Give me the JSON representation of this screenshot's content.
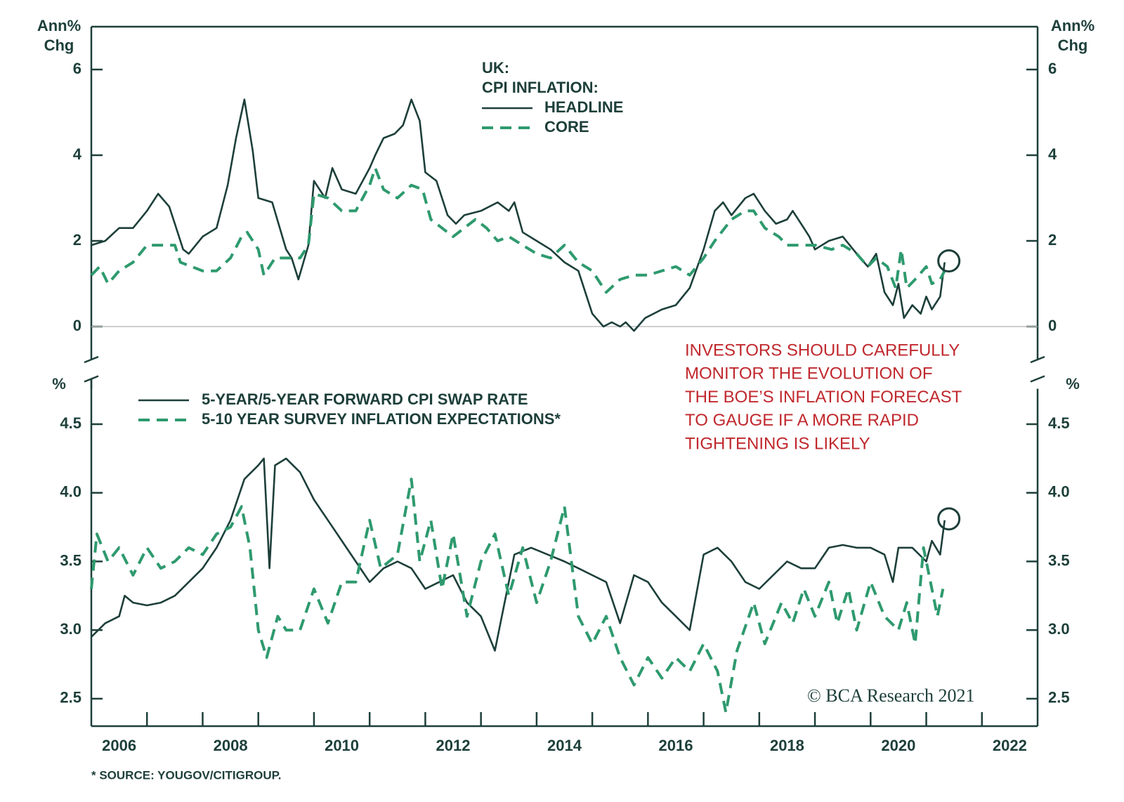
{
  "chart_data": [
    {
      "type": "line",
      "y_label": [
        "Ann%",
        "Chg"
      ],
      "y2_label": [
        "Ann%",
        "Chg"
      ],
      "legend_title": [
        "UK:",
        "CPI INFLATION:"
      ],
      "xlim": [
        2006,
        2023
      ],
      "ylim": [
        -1,
        7
      ],
      "yticks": [
        0,
        2,
        4,
        6
      ],
      "y2lim": [
        -1,
        7
      ],
      "y2ticks": [
        0,
        2,
        4,
        6
      ],
      "hlines": [
        0
      ],
      "series": [
        {
          "name": "HEADLINE",
          "color": "#1d3f3a",
          "style": "solid",
          "x": [
            2006.0,
            2006.25,
            2006.5,
            2006.75,
            2007.0,
            2007.2,
            2007.4,
            2007.5,
            2007.65,
            2007.75,
            2008.0,
            2008.25,
            2008.45,
            2008.6,
            2008.75,
            2008.9,
            2009.0,
            2009.25,
            2009.5,
            2009.6,
            2009.72,
            2009.9,
            2010.0,
            2010.2,
            2010.33,
            2010.5,
            2010.75,
            2011.0,
            2011.1,
            2011.25,
            2011.45,
            2011.6,
            2011.75,
            2011.9,
            2012.0,
            2012.2,
            2012.4,
            2012.55,
            2012.7,
            2013.0,
            2013.3,
            2013.5,
            2013.6,
            2013.75,
            2014.0,
            2014.25,
            2014.5,
            2014.75,
            2015.0,
            2015.2,
            2015.35,
            2015.5,
            2015.6,
            2015.75,
            2015.95,
            2016.25,
            2016.5,
            2016.75,
            2017.0,
            2017.2,
            2017.35,
            2017.5,
            2017.75,
            2017.9,
            2018.1,
            2018.3,
            2018.5,
            2018.6,
            2018.75,
            2018.9,
            2019.0,
            2019.25,
            2019.5,
            2019.75,
            2019.95,
            2020.1,
            2020.25,
            2020.4,
            2020.5,
            2020.6,
            2020.75,
            2020.9,
            2021.0,
            2021.1,
            2021.25,
            2021.33
          ],
          "values": [
            1.9,
            2.0,
            2.3,
            2.3,
            2.7,
            3.1,
            2.8,
            2.4,
            1.8,
            1.7,
            2.1,
            2.3,
            3.3,
            4.4,
            5.3,
            4.1,
            3.0,
            2.9,
            1.8,
            1.6,
            1.1,
            1.9,
            3.4,
            3.0,
            3.7,
            3.2,
            3.1,
            3.7,
            4.0,
            4.4,
            4.5,
            4.7,
            5.3,
            4.8,
            3.6,
            3.4,
            2.6,
            2.4,
            2.6,
            2.7,
            2.9,
            2.7,
            2.9,
            2.2,
            2.0,
            1.8,
            1.5,
            1.3,
            0.3,
            0.0,
            0.1,
            0.0,
            0.1,
            -0.1,
            0.2,
            0.4,
            0.5,
            0.9,
            1.8,
            2.7,
            2.9,
            2.6,
            3.0,
            3.1,
            2.7,
            2.4,
            2.5,
            2.7,
            2.4,
            2.1,
            1.8,
            2.0,
            2.1,
            1.7,
            1.4,
            1.7,
            0.8,
            0.5,
            1.0,
            0.2,
            0.5,
            0.3,
            0.7,
            0.4,
            0.7,
            1.5
          ]
        },
        {
          "name": "CORE",
          "color": "#2e9a6e",
          "style": "dashed",
          "x": [
            2006.0,
            2006.15,
            2006.3,
            2006.5,
            2006.75,
            2007.0,
            2007.3,
            2007.5,
            2007.6,
            2007.8,
            2008.0,
            2008.25,
            2008.5,
            2008.7,
            2008.8,
            2009.0,
            2009.1,
            2009.3,
            2009.5,
            2009.75,
            2009.9,
            2010.0,
            2010.25,
            2010.5,
            2010.75,
            2011.0,
            2011.1,
            2011.25,
            2011.5,
            2011.75,
            2011.95,
            2012.1,
            2012.3,
            2012.5,
            2012.7,
            2012.9,
            2013.1,
            2013.3,
            2013.5,
            2013.75,
            2014.0,
            2014.25,
            2014.5,
            2014.75,
            2015.0,
            2015.25,
            2015.5,
            2015.75,
            2016.0,
            2016.25,
            2016.5,
            2016.75,
            2017.0,
            2017.2,
            2017.5,
            2017.75,
            2017.9,
            2018.1,
            2018.35,
            2018.5,
            2018.75,
            2019.0,
            2019.3,
            2019.5,
            2019.75,
            2019.95,
            2020.1,
            2020.3,
            2020.45,
            2020.55,
            2020.65,
            2020.8,
            2021.0,
            2021.1,
            2021.25,
            2021.33
          ],
          "values": [
            1.2,
            1.4,
            1.0,
            1.3,
            1.5,
            1.9,
            1.9,
            1.9,
            1.5,
            1.4,
            1.3,
            1.3,
            1.6,
            2.1,
            2.2,
            1.8,
            1.2,
            1.6,
            1.6,
            1.6,
            1.9,
            3.1,
            3.0,
            2.7,
            2.7,
            3.3,
            3.7,
            3.2,
            3.0,
            3.3,
            3.2,
            2.5,
            2.3,
            2.1,
            2.3,
            2.5,
            2.3,
            2.0,
            2.1,
            1.9,
            1.7,
            1.6,
            1.9,
            1.5,
            1.3,
            0.8,
            1.1,
            1.2,
            1.2,
            1.3,
            1.4,
            1.2,
            1.6,
            2.0,
            2.5,
            2.7,
            2.7,
            2.3,
            2.1,
            1.9,
            1.9,
            1.9,
            1.8,
            1.9,
            1.7,
            1.4,
            1.6,
            1.4,
            0.9,
            1.8,
            0.9,
            1.1,
            1.4,
            1.0,
            1.1,
            1.3
          ]
        }
      ]
    },
    {
      "type": "line",
      "y_label": [
        "%"
      ],
      "y2_label": [
        "%"
      ],
      "xlim": [
        2006,
        2023
      ],
      "xticks": [
        2006,
        2008,
        2010,
        2012,
        2014,
        2016,
        2018,
        2020,
        2022
      ],
      "minor_xticks": [
        2007,
        2008,
        2009,
        2010,
        2011,
        2012,
        2013,
        2014,
        2015,
        2016,
        2017,
        2018,
        2019,
        2020,
        2021,
        2022
      ],
      "ylim": [
        2.3,
        4.83
      ],
      "yticks": [
        {
          "value": 2.5,
          "label": "2.5"
        },
        {
          "value": 3,
          "label": "3.0"
        },
        {
          "value": 3.5,
          "label": "3.5"
        },
        {
          "value": 4,
          "label": "4.0"
        },
        {
          "value": 4.5,
          "label": "4.5"
        }
      ],
      "y2lim": [
        2.3,
        4.83
      ],
      "y2ticks": [
        {
          "value": 2.5,
          "label": "2.5"
        },
        {
          "value": 3,
          "label": "3.0"
        },
        {
          "value": 3.5,
          "label": "3.5"
        },
        {
          "value": 4,
          "label": "4.0"
        },
        {
          "value": 4.5,
          "label": "4.5"
        }
      ],
      "series": [
        {
          "name": "5-YEAR/5-YEAR FORWARD CPI SWAP RATE",
          "color": "#1d3f3a",
          "style": "solid",
          "x": [
            2006.0,
            2006.25,
            2006.5,
            2006.6,
            2006.75,
            2007.0,
            2007.25,
            2007.5,
            2007.75,
            2008.0,
            2008.25,
            2008.5,
            2008.75,
            2009.0,
            2009.1,
            2009.2,
            2009.3,
            2009.5,
            2009.75,
            2010.0,
            2010.25,
            2010.5,
            2010.75,
            2011.0,
            2011.25,
            2011.5,
            2011.75,
            2012.0,
            2012.25,
            2012.5,
            2012.75,
            2013.0,
            2013.25,
            2013.4,
            2013.6,
            2013.9,
            2014.2,
            2014.5,
            2014.75,
            2015.0,
            2015.25,
            2015.5,
            2015.75,
            2016.0,
            2016.25,
            2016.5,
            2016.75,
            2017.0,
            2017.25,
            2017.5,
            2017.75,
            2018.0,
            2018.25,
            2018.5,
            2018.75,
            2019.0,
            2019.25,
            2019.5,
            2019.75,
            2020.0,
            2020.25,
            2020.4,
            2020.5,
            2020.75,
            2021.0,
            2021.1,
            2021.25,
            2021.33
          ],
          "values": [
            2.95,
            3.05,
            3.1,
            3.25,
            3.2,
            3.18,
            3.2,
            3.25,
            3.35,
            3.45,
            3.6,
            3.8,
            4.1,
            4.2,
            4.25,
            3.45,
            4.2,
            4.25,
            4.15,
            3.95,
            3.8,
            3.65,
            3.5,
            3.35,
            3.45,
            3.5,
            3.45,
            3.3,
            3.35,
            3.4,
            3.2,
            3.1,
            2.85,
            3.15,
            3.55,
            3.6,
            3.55,
            3.5,
            3.45,
            3.4,
            3.35,
            3.05,
            3.4,
            3.35,
            3.2,
            3.1,
            3.0,
            3.55,
            3.6,
            3.5,
            3.35,
            3.3,
            3.4,
            3.5,
            3.45,
            3.45,
            3.6,
            3.62,
            3.6,
            3.6,
            3.55,
            3.35,
            3.6,
            3.6,
            3.5,
            3.65,
            3.55,
            3.8
          ]
        },
        {
          "name": "5-10 YEAR SURVEY INFLATION EXPECTATIONS*",
          "color": "#2e9a6e",
          "style": "dashed",
          "x": [
            2006.0,
            2006.1,
            2006.3,
            2006.5,
            2006.75,
            2007.0,
            2007.25,
            2007.5,
            2007.75,
            2008.0,
            2008.25,
            2008.5,
            2008.7,
            2008.85,
            2009.0,
            2009.15,
            2009.35,
            2009.5,
            2009.75,
            2010.0,
            2010.25,
            2010.5,
            2010.75,
            2011.0,
            2011.2,
            2011.5,
            2011.75,
            2011.9,
            2012.1,
            2012.3,
            2012.5,
            2012.75,
            2013.0,
            2013.25,
            2013.5,
            2013.75,
            2014.0,
            2014.25,
            2014.5,
            2014.75,
            2015.0,
            2015.25,
            2015.5,
            2015.75,
            2016.0,
            2016.25,
            2016.5,
            2016.75,
            2017.0,
            2017.25,
            2017.4,
            2017.6,
            2017.9,
            2018.1,
            2018.4,
            2018.6,
            2018.8,
            2019.0,
            2019.25,
            2019.4,
            2019.6,
            2019.75,
            2020.0,
            2020.25,
            2020.5,
            2020.65,
            2020.8,
            2020.95,
            2021.1,
            2021.2,
            2021.3
          ],
          "values": [
            3.3,
            3.7,
            3.5,
            3.6,
            3.4,
            3.6,
            3.45,
            3.5,
            3.6,
            3.55,
            3.7,
            3.75,
            3.9,
            3.6,
            3.0,
            2.8,
            3.1,
            3.0,
            3.0,
            3.3,
            3.05,
            3.35,
            3.35,
            3.8,
            3.45,
            3.55,
            4.1,
            3.5,
            3.8,
            3.3,
            3.7,
            3.1,
            3.5,
            3.7,
            3.25,
            3.6,
            3.2,
            3.5,
            3.9,
            3.1,
            2.9,
            3.1,
            2.8,
            2.6,
            2.8,
            2.65,
            2.8,
            2.7,
            2.9,
            2.7,
            2.4,
            2.85,
            3.2,
            2.9,
            3.2,
            3.05,
            3.3,
            3.1,
            3.35,
            3.05,
            3.3,
            3.0,
            3.35,
            3.1,
            3.0,
            3.2,
            2.9,
            3.6,
            3.3,
            3.1,
            3.3
          ]
        }
      ]
    }
  ],
  "annotation": [
    "INVESTORS SHOULD CAREFULLY",
    "MONITOR THE EVOLUTION OF",
    "THE BOE’S INFLATION FORECAST",
    "TO GAUGE IF A MORE RAPID",
    "TIGHTENING IS LIKELY"
  ],
  "credit": "© BCA Research 2021",
  "footnote": "* SOURCE: YOUGOV/CITIGROUP."
}
